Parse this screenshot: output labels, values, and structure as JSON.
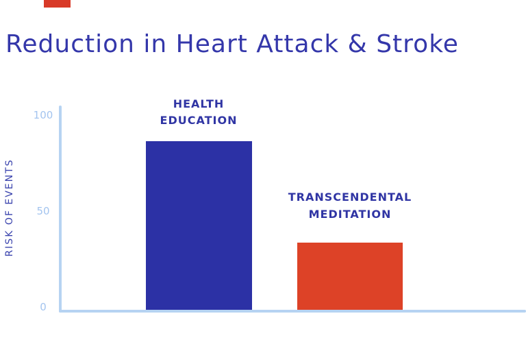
{
  "title": "Reduction in Heart Attack & Stroke",
  "accent": {
    "color": "#d83a28"
  },
  "colors": {
    "title_text": "#3437aa",
    "label_text": "#3035a4",
    "y_axis_title_text": "#3a43ad",
    "tick_text": "#a3c4ef",
    "axis_line": "#b6d3f2",
    "background": "#ffffff"
  },
  "chart_data": {
    "type": "bar",
    "title": "Reduction in Heart Attack & Stroke",
    "categories": [
      "HEALTH EDUCATION",
      "TRANSCENDENTAL MEDITATION"
    ],
    "category_label_lines": [
      [
        "HEALTH",
        "EDUCATION"
      ],
      [
        "TRANSCENDENTAL",
        "MEDITATION"
      ]
    ],
    "values": [
      88,
      35
    ],
    "bar_colors": [
      "#2c31a5",
      "#dd4227"
    ],
    "xlabel": "",
    "ylabel": "RISK OF EVENTS",
    "yticks": [
      0,
      50,
      100
    ],
    "ylim": [
      0,
      100
    ],
    "grid": false,
    "legend": "none"
  }
}
